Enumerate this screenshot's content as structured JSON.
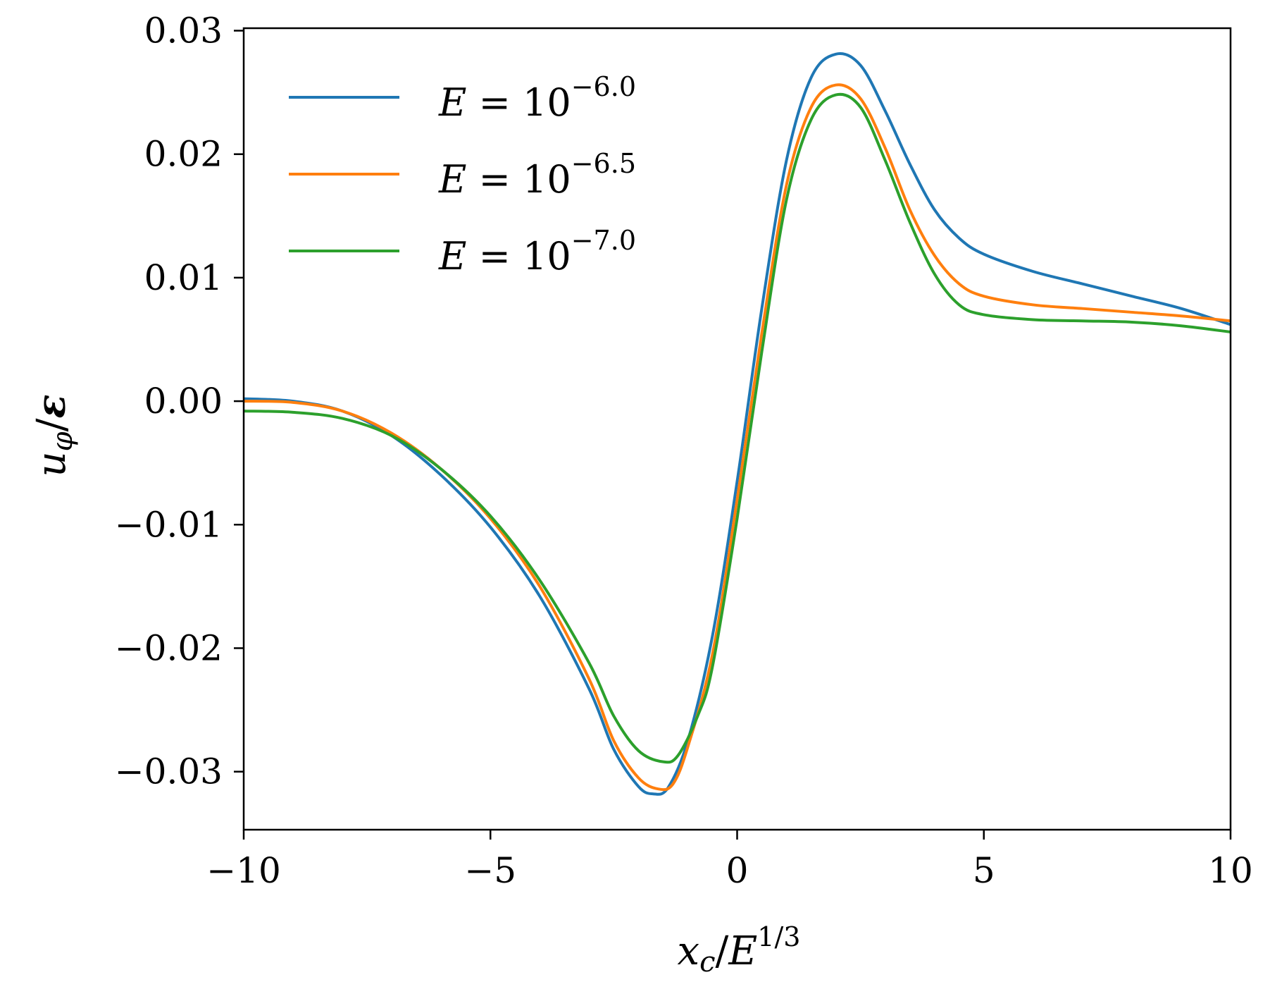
{
  "chart_data": {
    "type": "line",
    "xlabel": "x_c/E^{1/3}",
    "ylabel": "u_φ/ε",
    "xlim": [
      -10,
      10
    ],
    "ylim": [
      -0.0347,
      0.0302
    ],
    "xticks": [
      -10,
      -5,
      0,
      5,
      10
    ],
    "xtick_labels": [
      "−10",
      "−5",
      "0",
      "5",
      "10"
    ],
    "yticks": [
      0.03,
      0.02,
      0.01,
      0.0,
      -0.01,
      -0.02,
      -0.03
    ],
    "ytick_labels": [
      "0.03",
      "0.02",
      "0.01",
      "0.00",
      "−0.01",
      "−0.02",
      "−0.03"
    ],
    "grid": false,
    "legend_position": "top-left",
    "series": [
      {
        "name": "E = 10^{−6.0}",
        "legend_prefix": "E = 10",
        "legend_exp": "−6.0",
        "color": "#1f77b4",
        "points": [
          [
            -10,
            0.0002
          ],
          [
            -9,
            0.0
          ],
          [
            -8,
            -0.0008
          ],
          [
            -7,
            -0.0028
          ],
          [
            -6,
            -0.006
          ],
          [
            -5,
            -0.0102
          ],
          [
            -4,
            -0.0158
          ],
          [
            -3,
            -0.0233
          ],
          [
            -2.5,
            -0.0282
          ],
          [
            -2,
            -0.0312
          ],
          [
            -1.7,
            -0.0318
          ],
          [
            -1.4,
            -0.0313
          ],
          [
            -1,
            -0.0275
          ],
          [
            -0.5,
            -0.019
          ],
          [
            0,
            -0.0065
          ],
          [
            0.5,
            0.0075
          ],
          [
            1,
            0.0195
          ],
          [
            1.5,
            0.0262
          ],
          [
            2,
            0.0281
          ],
          [
            2.5,
            0.0272
          ],
          [
            3,
            0.0235
          ],
          [
            3.5,
            0.0192
          ],
          [
            4,
            0.0155
          ],
          [
            4.5,
            0.0132
          ],
          [
            5,
            0.0119
          ],
          [
            6,
            0.0105
          ],
          [
            7,
            0.0095
          ],
          [
            8,
            0.0085
          ],
          [
            9,
            0.0075
          ],
          [
            10,
            0.0062
          ]
        ]
      },
      {
        "name": "E = 10^{−6.5}",
        "legend_prefix": "E = 10",
        "legend_exp": "−6.5",
        "color": "#ff7f0e",
        "points": [
          [
            -10,
            0.0
          ],
          [
            -9,
            -0.0001
          ],
          [
            -8,
            -0.0008
          ],
          [
            -7,
            -0.0026
          ],
          [
            -6,
            -0.0055
          ],
          [
            -5,
            -0.0095
          ],
          [
            -4,
            -0.015
          ],
          [
            -3,
            -0.0225
          ],
          [
            -2.5,
            -0.0275
          ],
          [
            -2,
            -0.0305
          ],
          [
            -1.6,
            -0.0314
          ],
          [
            -1.3,
            -0.031
          ],
          [
            -1,
            -0.028
          ],
          [
            -0.5,
            -0.0205
          ],
          [
            0,
            -0.008
          ],
          [
            0.5,
            0.0055
          ],
          [
            1,
            0.0175
          ],
          [
            1.5,
            0.0238
          ],
          [
            2,
            0.0256
          ],
          [
            2.5,
            0.0245
          ],
          [
            3,
            0.0205
          ],
          [
            3.5,
            0.0155
          ],
          [
            4,
            0.0118
          ],
          [
            4.5,
            0.0095
          ],
          [
            5,
            0.0085
          ],
          [
            6,
            0.0078
          ],
          [
            7,
            0.0075
          ],
          [
            8,
            0.0072
          ],
          [
            9,
            0.0069
          ],
          [
            10,
            0.0065
          ]
        ]
      },
      {
        "name": "E = 10^{−7.0}",
        "legend_prefix": "E = 10",
        "legend_exp": "−7.0",
        "color": "#2ca02c",
        "points": [
          [
            -10,
            -0.0008
          ],
          [
            -9,
            -0.0009
          ],
          [
            -8,
            -0.0014
          ],
          [
            -7,
            -0.0028
          ],
          [
            -6,
            -0.0055
          ],
          [
            -5,
            -0.0093
          ],
          [
            -4,
            -0.0145
          ],
          [
            -3,
            -0.0212
          ],
          [
            -2.5,
            -0.0255
          ],
          [
            -2,
            -0.0283
          ],
          [
            -1.5,
            -0.0292
          ],
          [
            -1.2,
            -0.0287
          ],
          [
            -0.8,
            -0.0255
          ],
          [
            -0.5,
            -0.0215
          ],
          [
            0,
            -0.0095
          ],
          [
            0.5,
            0.004
          ],
          [
            1,
            0.0163
          ],
          [
            1.5,
            0.0228
          ],
          [
            2,
            0.0248
          ],
          [
            2.5,
            0.0238
          ],
          [
            3,
            0.0195
          ],
          [
            3.5,
            0.0145
          ],
          [
            4,
            0.0103
          ],
          [
            4.5,
            0.0078
          ],
          [
            5,
            0.007
          ],
          [
            6,
            0.0066
          ],
          [
            7,
            0.0065
          ],
          [
            8,
            0.0064
          ],
          [
            9,
            0.0061
          ],
          [
            10,
            0.0056
          ]
        ]
      }
    ]
  }
}
